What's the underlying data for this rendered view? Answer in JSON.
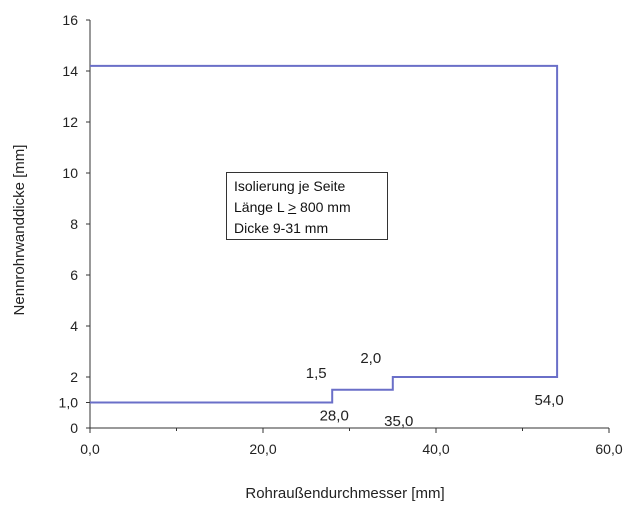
{
  "chart_data": {
    "type": "line",
    "title": "",
    "xlabel": "Rohraußendurchmesser [mm]",
    "ylabel": "Nennrohrwanddicke [mm]",
    "xlim": [
      0,
      60
    ],
    "ylim": [
      0,
      16
    ],
    "x_ticks": [
      {
        "value": 0,
        "label": "0,0"
      },
      {
        "value": 20,
        "label": "20,0"
      },
      {
        "value": 40,
        "label": "40,0"
      },
      {
        "value": 60,
        "label": "60,0"
      }
    ],
    "y_ticks": [
      {
        "value": 0,
        "label": "0"
      },
      {
        "value": 1,
        "label": "1,0"
      },
      {
        "value": 2,
        "label": "2"
      },
      {
        "value": 4,
        "label": "4"
      },
      {
        "value": 6,
        "label": "6"
      },
      {
        "value": 8,
        "label": "8"
      },
      {
        "value": 10,
        "label": "10"
      },
      {
        "value": 12,
        "label": "12"
      },
      {
        "value": 14,
        "label": "14"
      },
      {
        "value": 16,
        "label": "16"
      }
    ],
    "grid": false,
    "legend": "none",
    "series": [
      {
        "color": "#6a6fc8",
        "points": [
          [
            0,
            1.0
          ],
          [
            28,
            1.0
          ],
          [
            28,
            1.5
          ],
          [
            35,
            1.5
          ],
          [
            35,
            2.0
          ],
          [
            54,
            2.0
          ],
          [
            54,
            14.2
          ],
          [
            0,
            14.2
          ]
        ]
      }
    ],
    "annotations": [
      {
        "text": "1,5",
        "x": 28,
        "y": 1.5
      },
      {
        "text": "2,0",
        "x": 35,
        "y": 2.0
      },
      {
        "text": "28,0",
        "x": 28,
        "y": 1.0
      },
      {
        "text": "35,0",
        "x": 35,
        "y": 1.5
      },
      {
        "text": "54,0",
        "x": 54,
        "y": 2.0
      }
    ],
    "textbox": {
      "line1": "Isolierung je Seite",
      "line2_prefix": "Länge L ",
      "line2_symbol": ">",
      "line2_suffix": " 800 mm",
      "line3": "Dicke 9-31 mm"
    }
  }
}
